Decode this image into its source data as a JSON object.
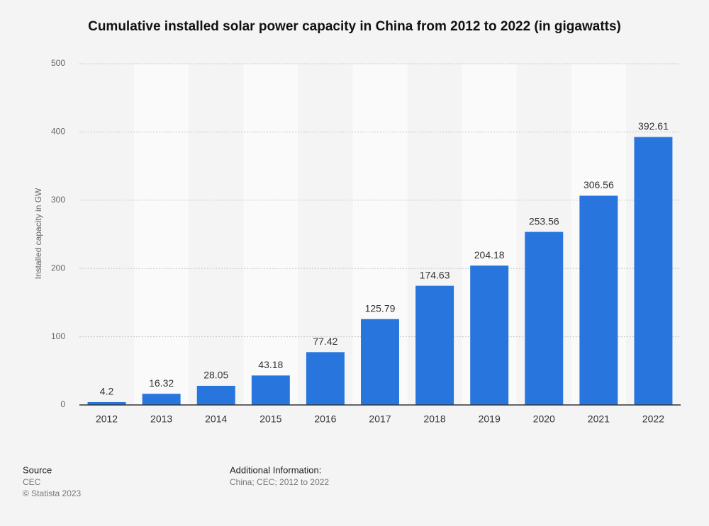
{
  "chart_data": {
    "type": "bar",
    "title": "Cumulative installed solar power capacity in China from 2012 to 2022 (in gigawatts)",
    "y_label": "Installed capacity in GW",
    "categories": [
      "2012",
      "2013",
      "2014",
      "2015",
      "2016",
      "2017",
      "2018",
      "2019",
      "2020",
      "2021",
      "2022"
    ],
    "values": [
      4.2,
      16.32,
      28.05,
      43.18,
      77.42,
      125.79,
      174.63,
      204.18,
      253.56,
      306.56,
      392.61
    ],
    "color": "#2876dd",
    "ylim": [
      0,
      500
    ],
    "yticks": [
      0,
      100,
      200,
      300,
      400,
      500
    ],
    "grid": true
  },
  "footer": {
    "source_heading": "Source",
    "source": "CEC",
    "copyright": "© Statista 2023",
    "info_heading": "Additional Information:",
    "info": "China; CEC; 2012 to 2022"
  }
}
